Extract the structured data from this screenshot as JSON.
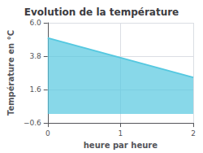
{
  "chart_data": {
    "type": "area",
    "title": "Evolution de la température",
    "xlabel": "heure par heure",
    "ylabel": "Température en °C",
    "x": [
      0,
      2
    ],
    "values": [
      5.0,
      2.4
    ],
    "color": "#55c8e0",
    "xlim": [
      0,
      2
    ],
    "xticks": [
      0,
      1,
      2
    ],
    "ylim": [
      -0.6,
      6.0
    ],
    "yticks": [
      {
        "value": -0.6,
        "label": "−0.6"
      },
      1.6,
      3.8,
      {
        "value": 6.0,
        "label": "6.0"
      }
    ],
    "grid": true
  }
}
